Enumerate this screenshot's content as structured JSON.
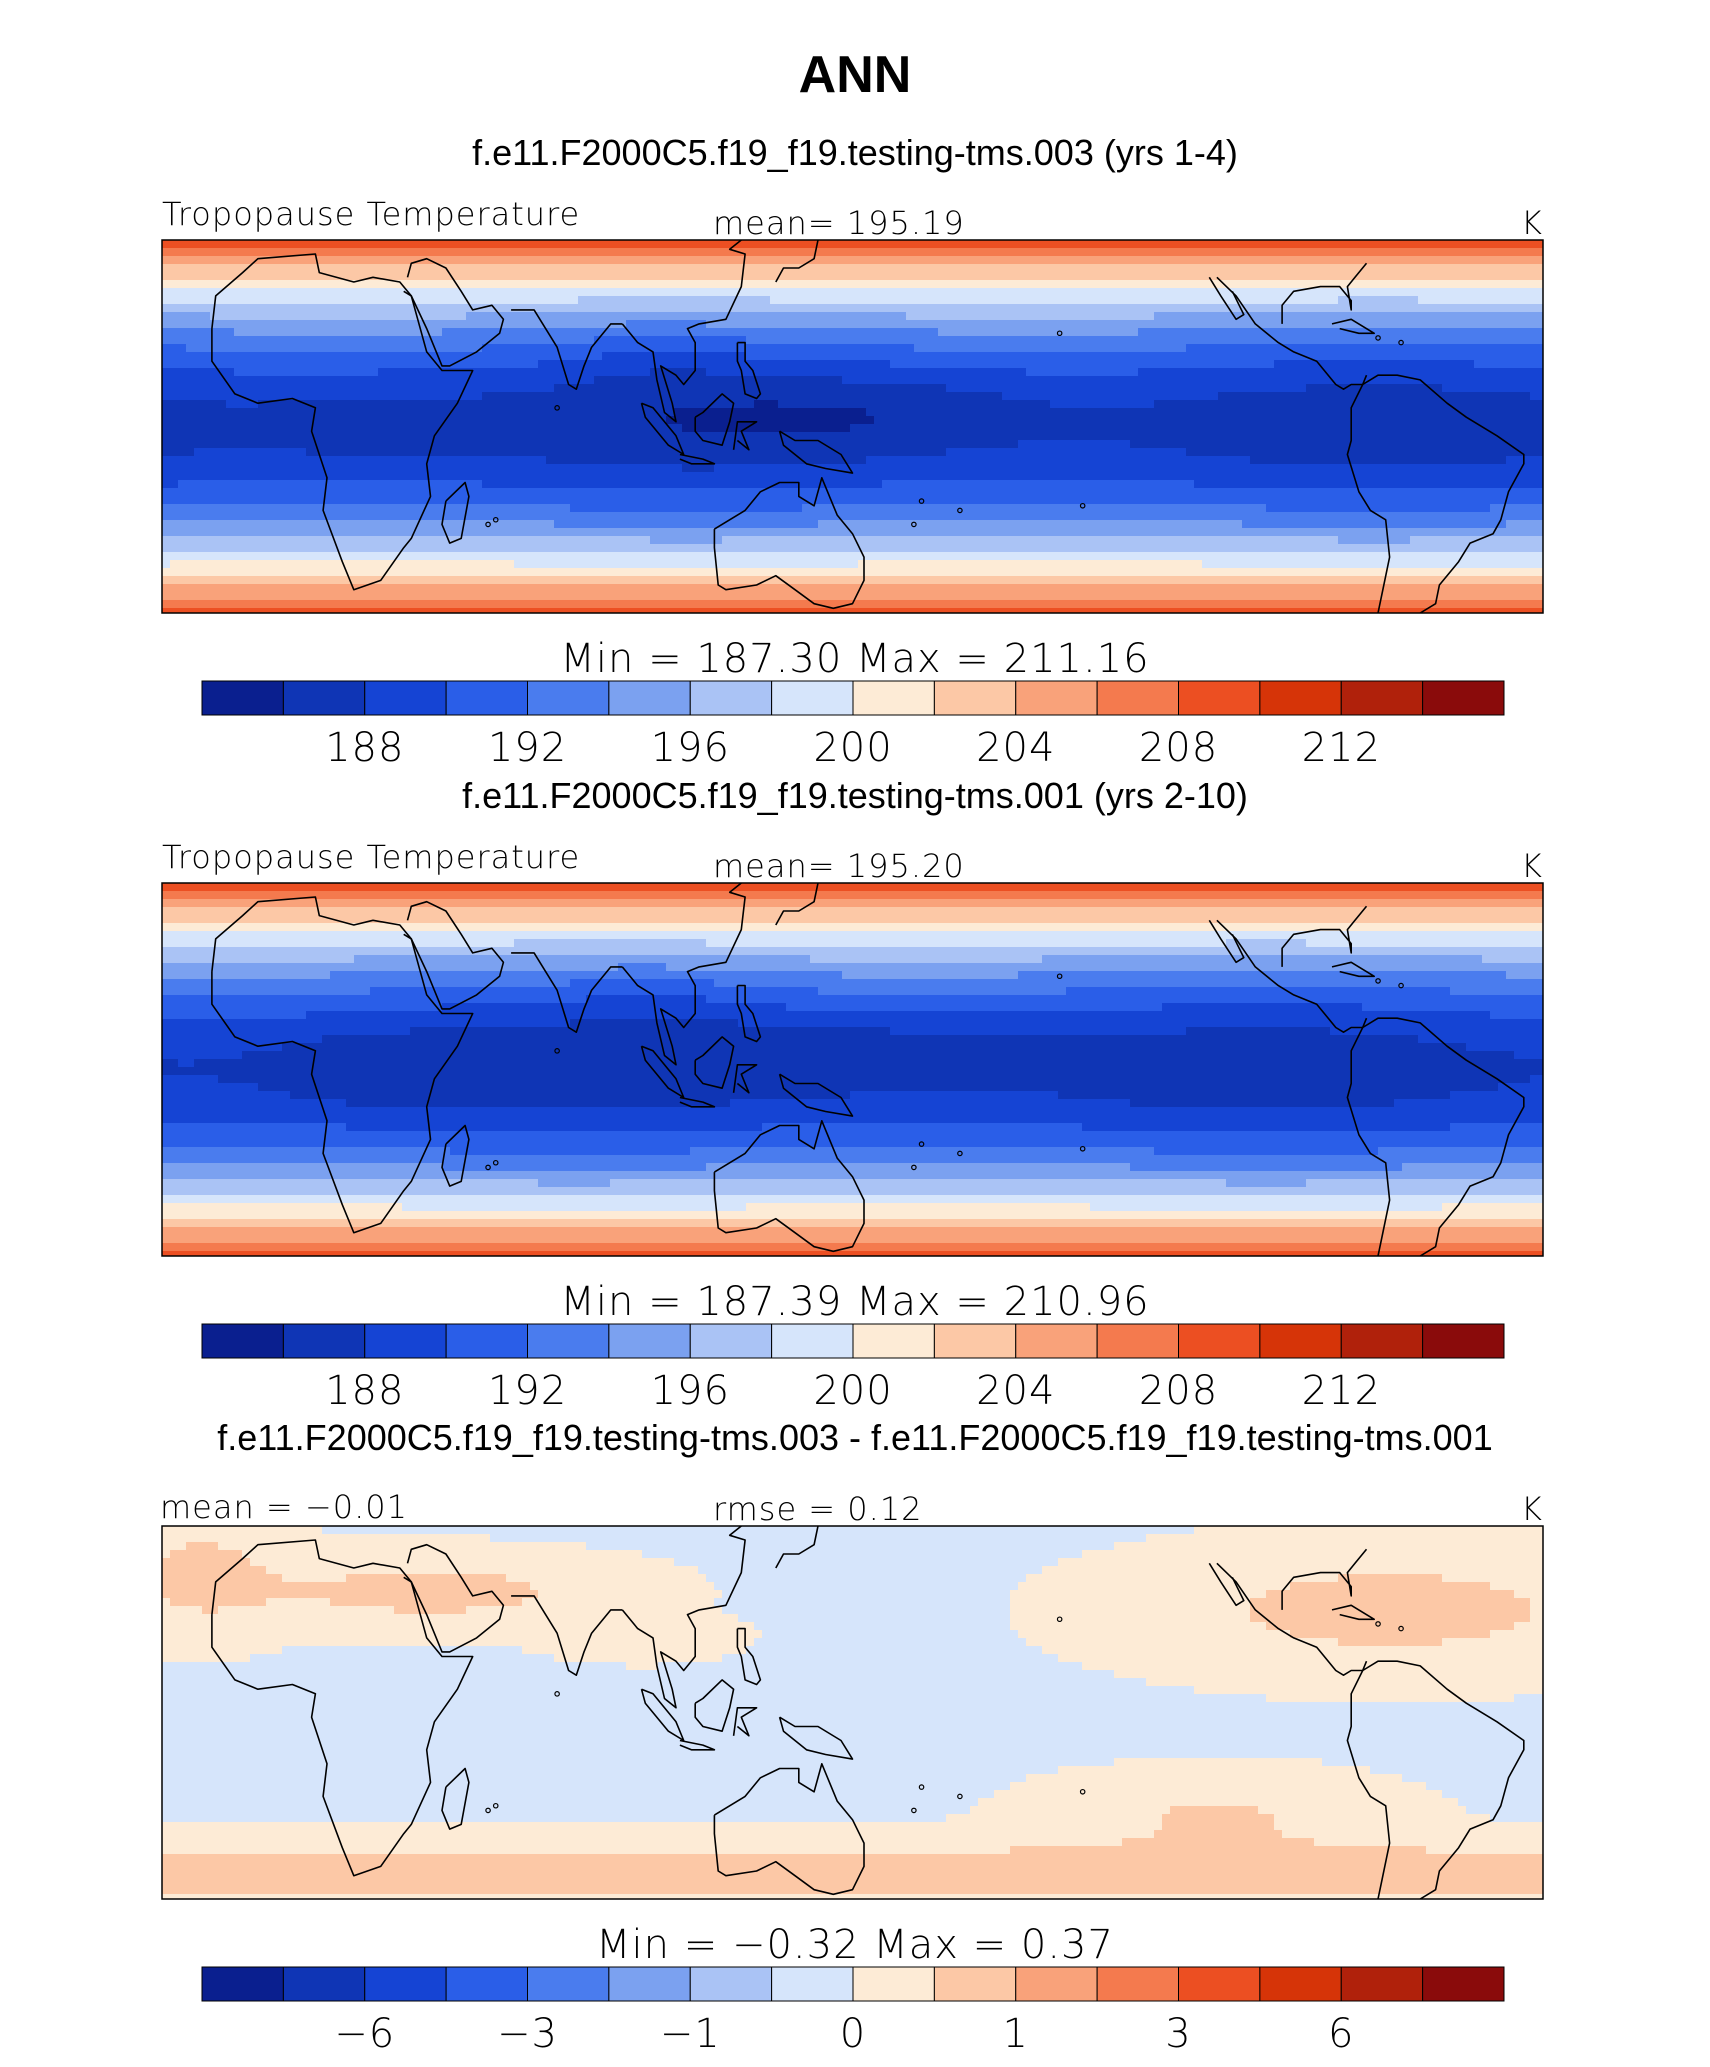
{
  "figure_title": "ANN",
  "palette": {
    "absolute": [
      "#0a1f8f",
      "#0f35b5",
      "#1544d4",
      "#2a5ee8",
      "#4a7cee",
      "#7ba1f0",
      "#aac3f5",
      "#d6e5fb",
      "#fdebd6",
      "#fcc8a6",
      "#f9a27a",
      "#f47a4e",
      "#ec4f22",
      "#d63408",
      "#b0210b",
      "#8a0b0b"
    ],
    "difference": [
      "#0a1f8f",
      "#0f35b5",
      "#1544d4",
      "#2a5ee8",
      "#4a7cee",
      "#7ba1f0",
      "#aac3f5",
      "#d6e5fb",
      "#fdebd6",
      "#fcc8a6",
      "#f9a27a",
      "#f47a4e",
      "#ec4f22",
      "#d63408",
      "#b0210b",
      "#8a0b0b"
    ]
  },
  "chart_data": [
    {
      "type": "heatmap",
      "case_title": "f.e11.F2000C5.f19_f19.testing-tms.003 (yrs 1-4)",
      "variable": "Tropopause Temperature",
      "stat_left": "",
      "stat_center": "mean=  195.19",
      "units": "K",
      "minmax_text": "Min  =  187.30  Max  =  211.16",
      "min": 187.3,
      "max": 211.16,
      "mean": 195.19,
      "levels": [
        186,
        188,
        190,
        192,
        194,
        196,
        198,
        200,
        202,
        204,
        206,
        208,
        210,
        212,
        214
      ],
      "colorbar_labels": [
        "188",
        "192",
        "196",
        "200",
        "204",
        "208",
        "212"
      ],
      "colorbar_label_boundaries": [
        1,
        3,
        5,
        7,
        9,
        11,
        13
      ],
      "field": "absolute",
      "seed": 1
    },
    {
      "type": "heatmap",
      "case_title": "f.e11.F2000C5.f19_f19.testing-tms.001 (yrs 2-10)",
      "variable": "Tropopause Temperature",
      "stat_left": "",
      "stat_center": "mean=  195.20",
      "units": "K",
      "minmax_text": "Min  =  187.39  Max  =  210.96",
      "min": 187.39,
      "max": 210.96,
      "mean": 195.2,
      "levels": [
        186,
        188,
        190,
        192,
        194,
        196,
        198,
        200,
        202,
        204,
        206,
        208,
        210,
        212,
        214
      ],
      "colorbar_labels": [
        "188",
        "192",
        "196",
        "200",
        "204",
        "208",
        "212"
      ],
      "colorbar_label_boundaries": [
        1,
        3,
        5,
        7,
        9,
        11,
        13
      ],
      "field": "absolute",
      "seed": 2
    },
    {
      "type": "heatmap",
      "case_title": "f.e11.F2000C5.f19_f19.testing-tms.003 - f.e11.F2000C5.f19_f19.testing-tms.001",
      "variable": "",
      "stat_left": "mean  =    −0.01",
      "stat_center": "rmse  =      0.12",
      "units": "K",
      "minmax_text": "Min  =    −0.32  Max  =      0.37",
      "min": -0.32,
      "max": 0.37,
      "mean": -0.01,
      "rmse": 0.12,
      "levels": [
        -8,
        -6,
        -4,
        -3,
        -2,
        -1,
        -0.5,
        0,
        0.5,
        1,
        2,
        3,
        4,
        6,
        8
      ],
      "colorbar_labels": [
        "−6",
        "−3",
        "−1",
        "0",
        "1",
        "3",
        "6"
      ],
      "colorbar_label_boundaries": [
        1,
        3,
        5,
        7,
        9,
        11,
        13
      ],
      "field": "difference",
      "seed": 3
    }
  ]
}
